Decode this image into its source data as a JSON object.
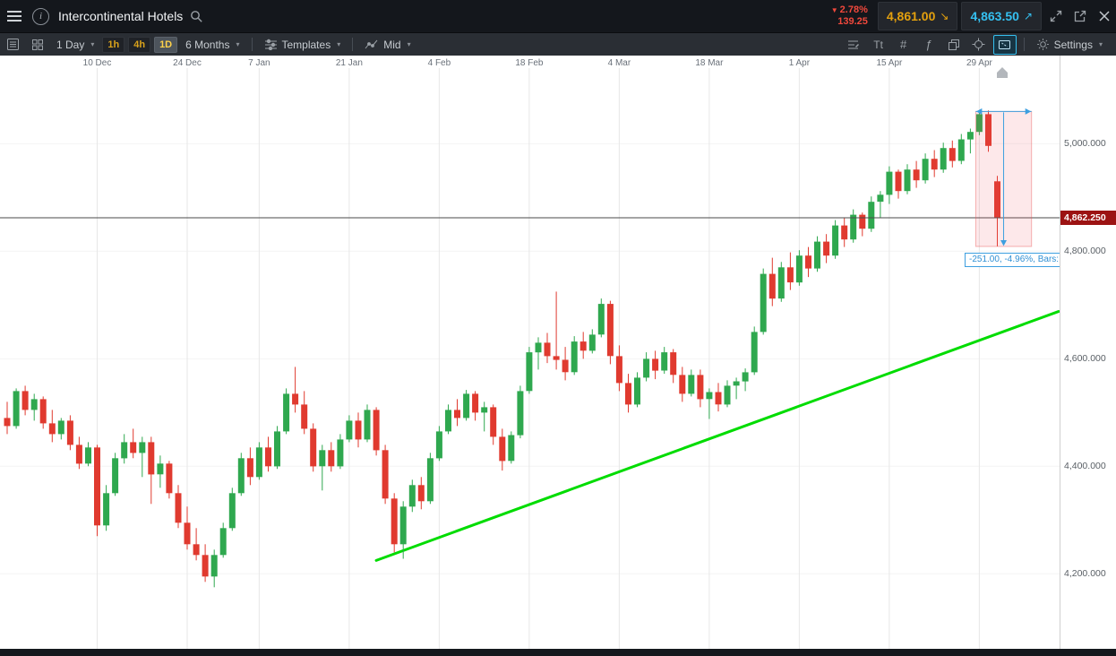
{
  "ui": {
    "caret": "▾",
    "triangle_down": "▼",
    "sell_arrow": "↘",
    "buy_arrow": "↗",
    "info_glyph": "i"
  },
  "colors": {
    "up": "#2fa84f",
    "down": "#e03a2f",
    "buy": "#35c0f0",
    "sell": "#e3a00e",
    "change": "#f0483c",
    "trend": "#00dc00",
    "measure_blue": "#3d9fe0",
    "price_tag_bg": "#9c1313"
  },
  "top_bar": {
    "title": "Intercontinental Hotels",
    "change_pct": "2.78%",
    "change_value": "139.25",
    "sell_price": "4,861.00",
    "buy_price": "4,863.50"
  },
  "toolbar": {
    "interval_label": "1 Day",
    "timeframes": [
      "1h",
      "4h",
      "1D"
    ],
    "active_timeframe": "1D",
    "range_label": "6 Months",
    "templates_label": "Templates",
    "price_type_label": "Mid",
    "settings_label": "Settings",
    "text_tool_label": "Tt",
    "pattern_tool_label": "#",
    "indicator_tool_label": "ƒ"
  },
  "chart_data": {
    "type": "candlestick",
    "title": "Intercontinental Hotels",
    "interval": "1 Day",
    "range": "6 Months",
    "ylim": [
      4150,
      5100
    ],
    "grid": true,
    "total_slots": 117,
    "price_axis": {
      "ticks": [
        {
          "label": "5,000.000",
          "value": 5000
        },
        {
          "label": "4,800.000",
          "value": 4800
        },
        {
          "label": "4,600.000",
          "value": 4600
        },
        {
          "label": "4,400.000",
          "value": 4400
        },
        {
          "label": "4,200.000",
          "value": 4200
        }
      ],
      "current": {
        "label": "4,862.250",
        "value": 4862.25
      }
    },
    "time_axis": {
      "ticks": [
        {
          "label": "10 Dec",
          "slot": 10
        },
        {
          "label": "24 Dec",
          "slot": 20
        },
        {
          "label": "7 Jan",
          "slot": 28
        },
        {
          "label": "21 Jan",
          "slot": 38
        },
        {
          "label": "4 Feb",
          "slot": 48
        },
        {
          "label": "18 Feb",
          "slot": 58
        },
        {
          "label": "4 Mar",
          "slot": 68
        },
        {
          "label": "18 Mar",
          "slot": 78
        },
        {
          "label": "1 Apr",
          "slot": 88
        },
        {
          "label": "15 Apr",
          "slot": 98
        },
        {
          "label": "29 Apr",
          "slot": 108
        }
      ]
    },
    "candles": [
      [
        4490,
        4520,
        4460,
        4475
      ],
      [
        4475,
        4545,
        4470,
        4540
      ],
      [
        4540,
        4550,
        4495,
        4505
      ],
      [
        4505,
        4535,
        4485,
        4525
      ],
      [
        4525,
        4530,
        4470,
        4480
      ],
      [
        4480,
        4505,
        4445,
        4460
      ],
      [
        4460,
        4490,
        4450,
        4485
      ],
      [
        4485,
        4495,
        4430,
        4440
      ],
      [
        4440,
        4455,
        4395,
        4405
      ],
      [
        4405,
        4445,
        4400,
        4435
      ],
      [
        4435,
        4440,
        4270,
        4290
      ],
      [
        4290,
        4365,
        4280,
        4350
      ],
      [
        4350,
        4425,
        4345,
        4415
      ],
      [
        4415,
        4460,
        4405,
        4445
      ],
      [
        4445,
        4470,
        4415,
        4425
      ],
      [
        4425,
        4455,
        4380,
        4445
      ],
      [
        4445,
        4455,
        4330,
        4385
      ],
      [
        4385,
        4420,
        4360,
        4405
      ],
      [
        4405,
        4410,
        4340,
        4350
      ],
      [
        4350,
        4365,
        4285,
        4295
      ],
      [
        4295,
        4325,
        4245,
        4255
      ],
      [
        4255,
        4285,
        4225,
        4235
      ],
      [
        4235,
        4255,
        4185,
        4195
      ],
      [
        4195,
        4245,
        4175,
        4235
      ],
      [
        4235,
        4295,
        4230,
        4285
      ],
      [
        4285,
        4360,
        4280,
        4350
      ],
      [
        4350,
        4425,
        4345,
        4415
      ],
      [
        4415,
        4435,
        4365,
        4380
      ],
      [
        4380,
        4445,
        4375,
        4435
      ],
      [
        4435,
        4455,
        4390,
        4400
      ],
      [
        4400,
        4475,
        4395,
        4465
      ],
      [
        4465,
        4545,
        4460,
        4535
      ],
      [
        4535,
        4585,
        4500,
        4515
      ],
      [
        4515,
        4540,
        4460,
        4470
      ],
      [
        4470,
        4480,
        4390,
        4400
      ],
      [
        4400,
        4440,
        4355,
        4430
      ],
      [
        4430,
        4445,
        4390,
        4400
      ],
      [
        4400,
        4460,
        4395,
        4450
      ],
      [
        4450,
        4495,
        4445,
        4485
      ],
      [
        4485,
        4500,
        4435,
        4450
      ],
      [
        4450,
        4515,
        4445,
        4505
      ],
      [
        4505,
        4510,
        4420,
        4430
      ],
      [
        4430,
        4440,
        4330,
        4340
      ],
      [
        4340,
        4350,
        4240,
        4255
      ],
      [
        4255,
        4335,
        4228,
        4325
      ],
      [
        4325,
        4375,
        4315,
        4365
      ],
      [
        4365,
        4380,
        4320,
        4335
      ],
      [
        4335,
        4425,
        4330,
        4415
      ],
      [
        4415,
        4475,
        4410,
        4465
      ],
      [
        4465,
        4515,
        4460,
        4505
      ],
      [
        4505,
        4525,
        4475,
        4490
      ],
      [
        4490,
        4542,
        4485,
        4535
      ],
      [
        4535,
        4540,
        4485,
        4500
      ],
      [
        4500,
        4520,
        4465,
        4510
      ],
      [
        4510,
        4515,
        4440,
        4455
      ],
      [
        4455,
        4470,
        4392,
        4410
      ],
      [
        4410,
        4465,
        4405,
        4458
      ],
      [
        4458,
        4550,
        4452,
        4540
      ],
      [
        4540,
        4622,
        4535,
        4612
      ],
      [
        4612,
        4640,
        4580,
        4630
      ],
      [
        4630,
        4648,
        4592,
        4605
      ],
      [
        4605,
        4725,
        4580,
        4598
      ],
      [
        4598,
        4622,
        4560,
        4575
      ],
      [
        4575,
        4642,
        4570,
        4632
      ],
      [
        4632,
        4650,
        4600,
        4615
      ],
      [
        4615,
        4655,
        4610,
        4645
      ],
      [
        4645,
        4712,
        4640,
        4702
      ],
      [
        4702,
        4708,
        4590,
        4605
      ],
      [
        4605,
        4625,
        4540,
        4555
      ],
      [
        4555,
        4572,
        4500,
        4515
      ],
      [
        4515,
        4575,
        4510,
        4565
      ],
      [
        4565,
        4612,
        4558,
        4600
      ],
      [
        4600,
        4615,
        4562,
        4578
      ],
      [
        4578,
        4622,
        4572,
        4612
      ],
      [
        4612,
        4618,
        4555,
        4570
      ],
      [
        4570,
        4585,
        4520,
        4535
      ],
      [
        4535,
        4580,
        4530,
        4570
      ],
      [
        4570,
        4580,
        4510,
        4525
      ],
      [
        4525,
        4545,
        4488,
        4538
      ],
      [
        4538,
        4555,
        4502,
        4515
      ],
      [
        4515,
        4560,
        4510,
        4550
      ],
      [
        4550,
        4565,
        4525,
        4558
      ],
      [
        4558,
        4582,
        4540,
        4575
      ],
      [
        4575,
        4660,
        4570,
        4650
      ],
      [
        4650,
        4768,
        4645,
        4758
      ],
      [
        4758,
        4788,
        4698,
        4712
      ],
      [
        4712,
        4780,
        4706,
        4770
      ],
      [
        4770,
        4798,
        4728,
        4742
      ],
      [
        4742,
        4802,
        4736,
        4792
      ],
      [
        4792,
        4808,
        4752,
        4768
      ],
      [
        4768,
        4828,
        4762,
        4818
      ],
      [
        4818,
        4832,
        4778,
        4792
      ],
      [
        4792,
        4858,
        4786,
        4848
      ],
      [
        4848,
        4862,
        4808,
        4822
      ],
      [
        4822,
        4878,
        4816,
        4868
      ],
      [
        4868,
        4872,
        4828,
        4842
      ],
      [
        4842,
        4902,
        4836,
        4892
      ],
      [
        4892,
        4912,
        4862,
        4905
      ],
      [
        4905,
        4958,
        4888,
        4948
      ],
      [
        4948,
        4952,
        4898,
        4912
      ],
      [
        4912,
        4962,
        4906,
        4952
      ],
      [
        4952,
        4968,
        4918,
        4932
      ],
      [
        4932,
        4982,
        4926,
        4972
      ],
      [
        4972,
        4988,
        4938,
        4952
      ],
      [
        4952,
        5002,
        4946,
        4992
      ],
      [
        4992,
        5006,
        4956,
        4968
      ],
      [
        4968,
        5018,
        4962,
        5008
      ],
      [
        5008,
        5028,
        4982,
        5022
      ],
      [
        5022,
        5062,
        5016,
        5055
      ],
      [
        5055,
        5062,
        4985,
        4996
      ],
      [
        4930,
        4940,
        4809,
        4862
      ]
    ],
    "trend_line": {
      "from_slot": 41,
      "from_price": 4225,
      "to_slot": 116.8,
      "to_price": 4688
    },
    "measurement": {
      "from_slot": 107.6,
      "to_slot": 113.8,
      "top_price": 5060,
      "bottom_price": 4809,
      "label": "-251.00, -4.96%, Bars:"
    }
  }
}
